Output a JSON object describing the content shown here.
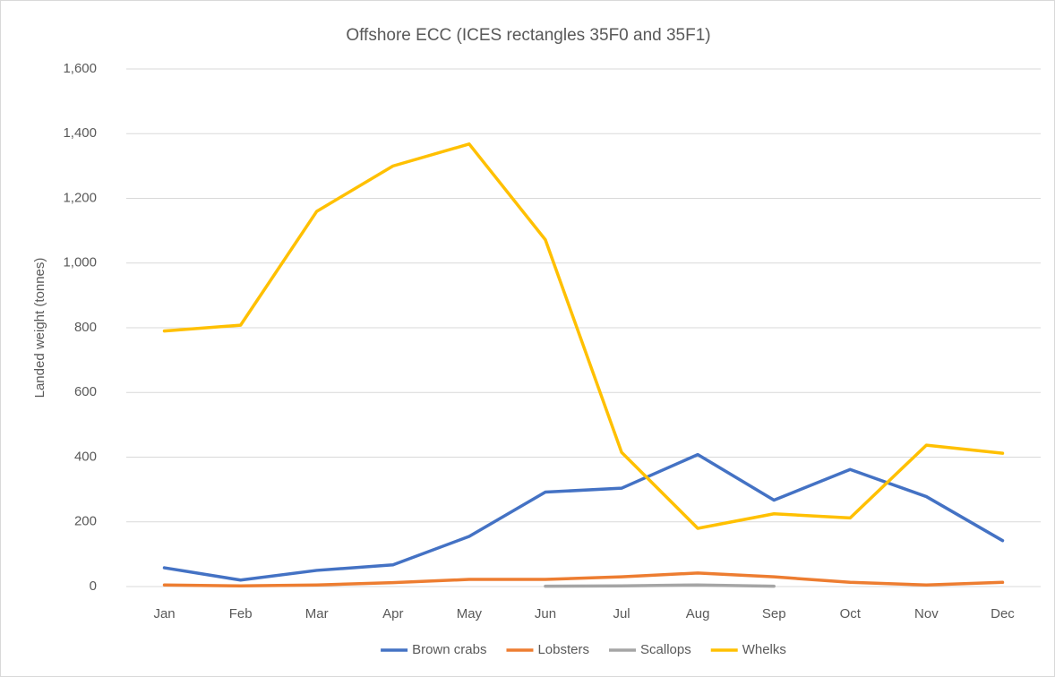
{
  "chart_data": {
    "type": "line",
    "title": "Offshore ECC (ICES rectangles 35F0 and 35F1)",
    "y_label": "Landed weight (tonnes)",
    "categories": [
      "Jan",
      "Feb",
      "Mar",
      "Apr",
      "May",
      "Jun",
      "Jul",
      "Aug",
      "Sep",
      "Oct",
      "Nov",
      "Dec"
    ],
    "series": [
      {
        "name": "Brown crabs",
        "color": "#4472c4",
        "values": [
          58,
          20,
          50,
          67,
          155,
          292,
          304,
          408,
          267,
          362,
          278,
          142
        ]
      },
      {
        "name": "Lobsters",
        "color": "#ed7d31",
        "values": [
          5,
          2,
          5,
          12,
          22,
          22,
          30,
          42,
          30,
          13,
          5,
          13
        ]
      },
      {
        "name": "Scallops",
        "color": "#a5a5a5",
        "values": [
          null,
          null,
          null,
          null,
          null,
          1,
          2,
          5,
          1,
          null,
          null,
          null
        ]
      },
      {
        "name": "Whelks",
        "color": "#ffc000",
        "values": [
          790,
          808,
          1160,
          1300,
          1368,
          1072,
          415,
          180,
          225,
          212,
          437,
          412
        ]
      }
    ],
    "ylim": [
      0,
      1600
    ],
    "yticks": [
      0,
      200,
      400,
      600,
      800,
      {
        "value": 1000,
        "label": "1,000"
      },
      {
        "value": 1200,
        "label": "1,200"
      },
      {
        "value": 1400,
        "label": "1,400"
      },
      {
        "value": 1600,
        "label": "1,600"
      }
    ],
    "grid": true,
    "legend": "bottom"
  }
}
